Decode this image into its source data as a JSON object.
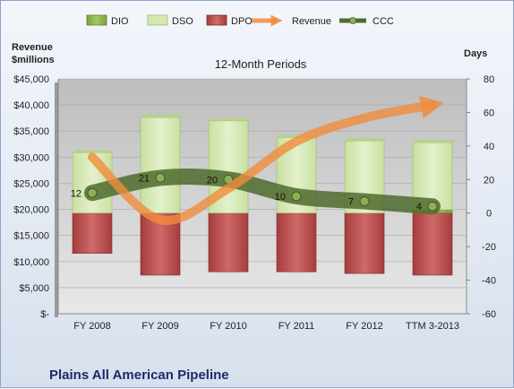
{
  "chart_data": {
    "type": "bar",
    "title": "12-Month Periods",
    "company": "Plains All American Pipeline",
    "left_axis_label": "Revenue\n$millions",
    "right_axis_label": "Days",
    "legend_position": "top",
    "categories": [
      "FY 2008",
      "FY 2009",
      "FY 2010",
      "FY 2011",
      "FY 2012",
      "TTM 3-2013"
    ],
    "left_axis": {
      "min": 0,
      "max": 45000,
      "step": 5000,
      "tick_labels": [
        "$-",
        "$5,000",
        "$10,000",
        "$15,000",
        "$20,000",
        "$25,000",
        "$30,000",
        "$35,000",
        "$40,000",
        "$45,000"
      ]
    },
    "right_axis": {
      "min": -60,
      "max": 80,
      "step": 20,
      "tick_labels": [
        "-60",
        "-40",
        "-20",
        "0",
        "20",
        "40",
        "60",
        "80"
      ]
    },
    "series": [
      {
        "name": "DIO",
        "axis": "right",
        "kind": "stacked-bar",
        "color": "#8db24c",
        "values": [
          0,
          0,
          0,
          0,
          0,
          2
        ]
      },
      {
        "name": "DSO",
        "axis": "right",
        "kind": "stacked-bar",
        "color": "#d5e8b2",
        "values": [
          36,
          57,
          55,
          45,
          43,
          40
        ]
      },
      {
        "name": "DPO",
        "axis": "right",
        "kind": "negative-bar",
        "color": "#b94a4a",
        "values": [
          -24,
          -37,
          -35,
          -35,
          -36,
          -37
        ]
      },
      {
        "name": "Revenue",
        "axis": "left",
        "kind": "arrow-line",
        "color": "#f08c3c",
        "values": [
          30000,
          18000,
          24000,
          33000,
          37500,
          40000
        ]
      },
      {
        "name": "CCC",
        "axis": "right",
        "kind": "line",
        "color": "#5a7a3a",
        "values": [
          12,
          21,
          20,
          10,
          7,
          4
        ],
        "data_labels": [
          "12",
          "21",
          "20",
          "10",
          "7",
          "4"
        ]
      }
    ]
  }
}
